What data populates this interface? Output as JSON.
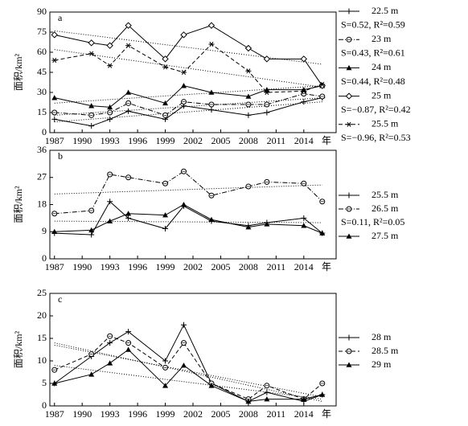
{
  "chart_data": [
    {
      "type": "line",
      "panel_label": "a",
      "y_label": "面积/km²",
      "x_label": "年",
      "x": [
        1987,
        1991,
        1993,
        1995,
        1999,
        2001,
        2004,
        2008,
        2010,
        2014,
        2016
      ],
      "xlim": [
        1986.5,
        2017.5
      ],
      "xticks": [
        1987,
        1990,
        1993,
        1996,
        1999,
        2002,
        2005,
        2008,
        2011,
        2014
      ],
      "ylim": [
        0,
        90
      ],
      "yticks": [
        0,
        15,
        30,
        45,
        60,
        75,
        90
      ],
      "series": [
        {
          "name": "22.5 m",
          "color": "#000000",
          "marker": "plus",
          "dash": "solid",
          "values": [
            10,
            5,
            10,
            16,
            10,
            20,
            17,
            13,
            15,
            23,
            26
          ],
          "trend": {
            "x": [
              1987,
              2016
            ],
            "values": [
              8,
              23
            ]
          },
          "trend_label": "S=0.52, R²=0.59"
        },
        {
          "name": "23 m",
          "color": "#000000",
          "marker": "circle",
          "dash": "dashdot",
          "values": [
            15,
            13,
            15,
            22,
            13,
            23,
            21,
            21,
            21,
            29,
            27
          ],
          "trend": {
            "x": [
              1987,
              2016
            ],
            "values": [
              13,
              26
            ]
          },
          "trend_label": "S=0.43, R²=0.61"
        },
        {
          "name": "24 m",
          "color": "#000000",
          "marker": "triangle",
          "dash": "solid",
          "values": [
            26,
            20,
            19,
            30,
            22,
            35,
            30,
            27,
            32,
            32,
            35
          ],
          "trend": {
            "x": [
              1987,
              2016
            ],
            "values": [
              22,
              35
            ]
          },
          "trend_label": "S=0.44, R²=0.48"
        },
        {
          "name": "25 m",
          "color": "#000000",
          "marker": "diamond",
          "dash": "solid",
          "values": [
            73,
            67,
            65,
            80,
            55,
            73,
            80,
            63,
            55,
            55,
            35
          ],
          "trend": {
            "x": [
              1987,
              2016
            ],
            "values": [
              76,
              51
            ]
          },
          "trend_label": "S=−0.87, R²=0.42"
        },
        {
          "name": "25.5 m",
          "color": "#000000",
          "marker": "star",
          "dash": "dash",
          "values": [
            54,
            59,
            50,
            65,
            49,
            45,
            66,
            46,
            30,
            31,
            36
          ],
          "trend": {
            "x": [
              1987,
              2016
            ],
            "values": [
              62,
              34
            ]
          },
          "trend_label": "S=−0.96, R²=0.53"
        }
      ]
    },
    {
      "type": "line",
      "panel_label": "b",
      "y_label": "面积/km²",
      "x_label": "年",
      "x": [
        1987,
        1991,
        1993,
        1995,
        1999,
        2001,
        2004,
        2008,
        2010,
        2014,
        2016
      ],
      "xlim": [
        1986.5,
        2017.5
      ],
      "xticks": [
        1987,
        1990,
        1993,
        1996,
        1999,
        2002,
        2005,
        2008,
        2011,
        2014
      ],
      "ylim": [
        0,
        36
      ],
      "yticks": [
        0,
        9,
        18,
        27,
        36
      ],
      "series": [
        {
          "name": "25.5 m",
          "color": "#000000",
          "marker": "plus",
          "dash": "solid",
          "values": [
            8.5,
            8,
            19,
            13.5,
            10,
            17.5,
            12.5,
            11,
            12,
            13.5,
            8.5
          ],
          "trend": {
            "x": [
              1987,
              2016
            ],
            "values": [
              12.5,
              12
            ]
          }
        },
        {
          "name": "26.5 m",
          "color": "#000000",
          "marker": "circle",
          "dash": "dashdot",
          "values": [
            15,
            16,
            28,
            27,
            25,
            29,
            21,
            24,
            25.5,
            25,
            19
          ],
          "trend": {
            "x": [
              1987,
              2016
            ],
            "values": [
              21.5,
              24.5
            ]
          },
          "trend_label": "S=0.11, R²=0.05"
        },
        {
          "name": "27.5 m",
          "color": "#000000",
          "marker": "triangle",
          "dash": "solid",
          "values": [
            9,
            9.5,
            12.5,
            15,
            14.5,
            18,
            13,
            10.5,
            11.5,
            11,
            8.5
          ]
        }
      ]
    },
    {
      "type": "line",
      "panel_label": "c",
      "y_label": "面积/km²",
      "x_label": "年",
      "x": [
        1987,
        1991,
        1993,
        1995,
        1999,
        2001,
        2004,
        2008,
        2010,
        2014,
        2016
      ],
      "xlim": [
        1986.5,
        2017.5
      ],
      "xticks": [
        1987,
        1990,
        1993,
        1996,
        1999,
        2002,
        2005,
        2008,
        2011,
        2014
      ],
      "ylim": [
        0,
        25
      ],
      "yticks": [
        0,
        5,
        10,
        15,
        20,
        25
      ],
      "series": [
        {
          "name": "28 m",
          "color": "#000000",
          "marker": "plus",
          "dash": "solid",
          "values": [
            5,
            11,
            14,
            16.5,
            10,
            18,
            5,
            1,
            3,
            1,
            2.5
          ],
          "trend": {
            "x": [
              1987,
              2016
            ],
            "values": [
              14,
              1
            ]
          }
        },
        {
          "name": "28.5 m",
          "color": "#000000",
          "marker": "circle",
          "dash": "dash",
          "values": [
            8,
            11.5,
            15.5,
            14,
            8.5,
            14,
            5,
            1.5,
            4.5,
            1.5,
            5
          ],
          "trend": {
            "x": [
              1987,
              2016
            ],
            "values": [
              13.5,
              2
            ]
          }
        },
        {
          "name": "29 m",
          "color": "#000000",
          "marker": "triangle",
          "dash": "solid",
          "values": [
            5,
            7,
            9.5,
            12.5,
            4.5,
            9,
            4.5,
            1,
            1.5,
            1.5,
            2.5
          ],
          "trend": {
            "x": [
              1987,
              2016
            ],
            "values": [
              9,
              1.5
            ]
          }
        }
      ]
    }
  ]
}
